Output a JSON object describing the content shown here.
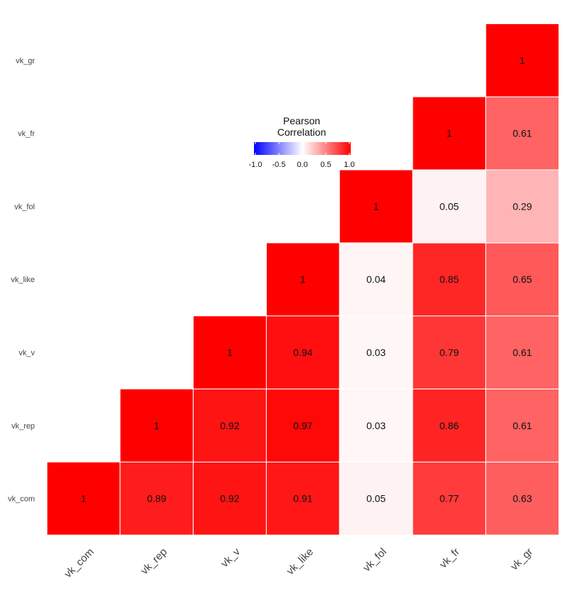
{
  "chart_data": {
    "type": "heatmap",
    "variables": [
      "vk_com",
      "vk_rep",
      "vk_v",
      "vk_like",
      "vk_fol",
      "vk_fr",
      "vk_gr"
    ],
    "matrix_lower": [
      [
        1
      ],
      [
        0.89,
        1
      ],
      [
        0.92,
        0.92,
        1
      ],
      [
        0.91,
        0.97,
        0.94,
        1
      ],
      [
        0.05,
        0.03,
        0.03,
        0.04,
        1
      ],
      [
        0.77,
        0.86,
        0.79,
        0.85,
        0.05,
        1
      ],
      [
        0.63,
        0.61,
        0.61,
        0.65,
        0.29,
        0.61,
        1
      ]
    ],
    "legend": {
      "title_line1": "Pearson",
      "title_line2": "Correlation",
      "ticks": [
        "-1.0",
        "-0.5",
        "0.0",
        "0.5",
        "1.0"
      ],
      "range": [
        -1,
        1
      ]
    },
    "colors": {
      "low": "#0000ff",
      "mid": "#ffffff",
      "high": "#ff0000"
    },
    "grid": false
  }
}
